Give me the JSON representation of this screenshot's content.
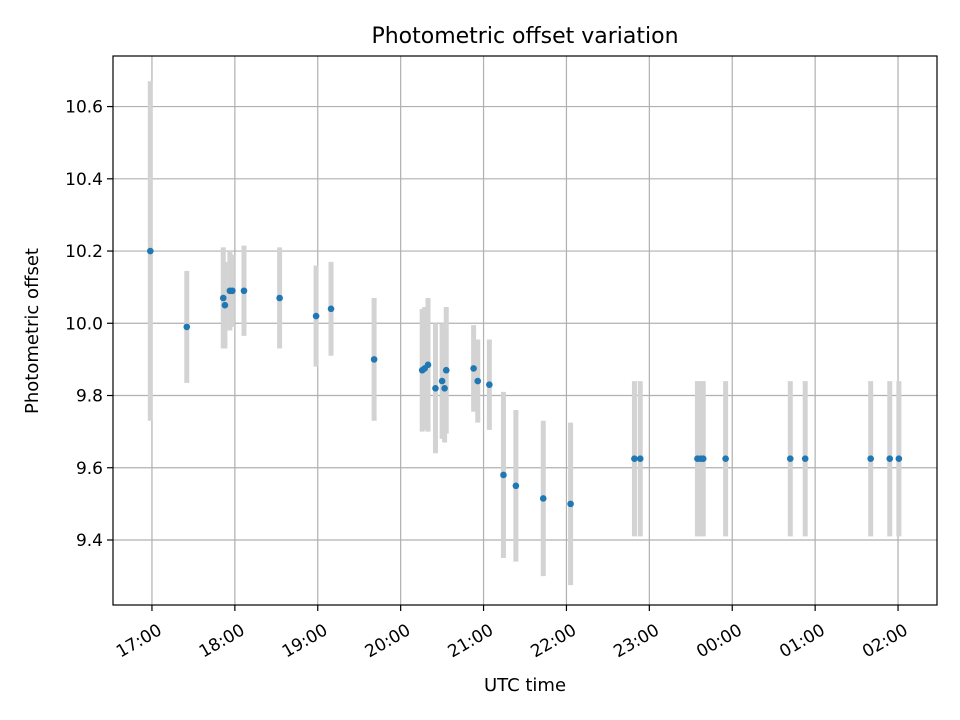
{
  "chart_data": {
    "type": "scatter",
    "title": "Photometric offset variation",
    "xlabel": "UTC time",
    "ylabel": "Photometric offset",
    "x_unit": "hours since 17:00 UTC",
    "xlim": [
      -0.47,
      9.47
    ],
    "ylim": [
      9.22,
      10.74
    ],
    "grid": true,
    "colors": {
      "point": "#1f77b4",
      "errorbar": "#d3d3d3",
      "grid": "#b0b0b0",
      "axes": "#000000"
    },
    "x_ticks": [
      {
        "value": 0,
        "label": "17:00"
      },
      {
        "value": 1,
        "label": "18:00"
      },
      {
        "value": 2,
        "label": "19:00"
      },
      {
        "value": 3,
        "label": "20:00"
      },
      {
        "value": 4,
        "label": "21:00"
      },
      {
        "value": 5,
        "label": "22:00"
      },
      {
        "value": 6,
        "label": "23:00"
      },
      {
        "value": 7,
        "label": "00:00"
      },
      {
        "value": 8,
        "label": "01:00"
      },
      {
        "value": 9,
        "label": "02:00"
      }
    ],
    "y_ticks": [
      {
        "value": 9.4,
        "label": "9.4"
      },
      {
        "value": 9.6,
        "label": "9.6"
      },
      {
        "value": 9.8,
        "label": "9.8"
      },
      {
        "value": 10.0,
        "label": "10.0"
      },
      {
        "value": 10.2,
        "label": "10.2"
      },
      {
        "value": 10.4,
        "label": "10.4"
      },
      {
        "value": 10.6,
        "label": "10.6"
      }
    ],
    "points": [
      {
        "x": -0.02,
        "y": 10.2,
        "err": 0.47
      },
      {
        "x": 0.42,
        "y": 9.99,
        "err": 0.155
      },
      {
        "x": 0.86,
        "y": 10.07,
        "err": 0.14
      },
      {
        "x": 0.88,
        "y": 10.05,
        "err": 0.12
      },
      {
        "x": 0.94,
        "y": 10.09,
        "err": 0.11
      },
      {
        "x": 0.97,
        "y": 10.09,
        "err": 0.1
      },
      {
        "x": 1.11,
        "y": 10.09,
        "err": 0.125
      },
      {
        "x": 1.54,
        "y": 10.07,
        "err": 0.14
      },
      {
        "x": 1.98,
        "y": 10.02,
        "err": 0.14
      },
      {
        "x": 2.16,
        "y": 10.04,
        "err": 0.13
      },
      {
        "x": 2.68,
        "y": 9.9,
        "err": 0.17
      },
      {
        "x": 3.26,
        "y": 9.87,
        "err": 0.17
      },
      {
        "x": 3.29,
        "y": 9.875,
        "err": 0.17
      },
      {
        "x": 3.33,
        "y": 9.885,
        "err": 0.185
      },
      {
        "x": 3.42,
        "y": 9.82,
        "err": 0.18
      },
      {
        "x": 3.5,
        "y": 9.84,
        "err": 0.16
      },
      {
        "x": 3.53,
        "y": 9.82,
        "err": 0.15
      },
      {
        "x": 3.55,
        "y": 9.87,
        "err": 0.175
      },
      {
        "x": 3.88,
        "y": 9.875,
        "err": 0.12
      },
      {
        "x": 3.93,
        "y": 9.84,
        "err": 0.115
      },
      {
        "x": 4.07,
        "y": 9.83,
        "err": 0.125
      },
      {
        "x": 4.24,
        "y": 9.58,
        "err": 0.23
      },
      {
        "x": 4.39,
        "y": 9.55,
        "err": 0.21
      },
      {
        "x": 4.72,
        "y": 9.515,
        "err": 0.215
      },
      {
        "x": 5.05,
        "y": 9.5,
        "err": 0.225
      },
      {
        "x": 5.82,
        "y": 9.625,
        "err": 0.215
      },
      {
        "x": 5.89,
        "y": 9.625,
        "err": 0.215
      },
      {
        "x": 6.58,
        "y": 9.625,
        "err": 0.215
      },
      {
        "x": 6.62,
        "y": 9.625,
        "err": 0.215
      },
      {
        "x": 6.65,
        "y": 9.625,
        "err": 0.215
      },
      {
        "x": 6.92,
        "y": 9.625,
        "err": 0.215
      },
      {
        "x": 7.7,
        "y": 9.625,
        "err": 0.215
      },
      {
        "x": 7.88,
        "y": 9.625,
        "err": 0.215
      },
      {
        "x": 8.67,
        "y": 9.625,
        "err": 0.215
      },
      {
        "x": 8.9,
        "y": 9.625,
        "err": 0.215
      },
      {
        "x": 9.01,
        "y": 9.625,
        "err": 0.215
      }
    ]
  }
}
